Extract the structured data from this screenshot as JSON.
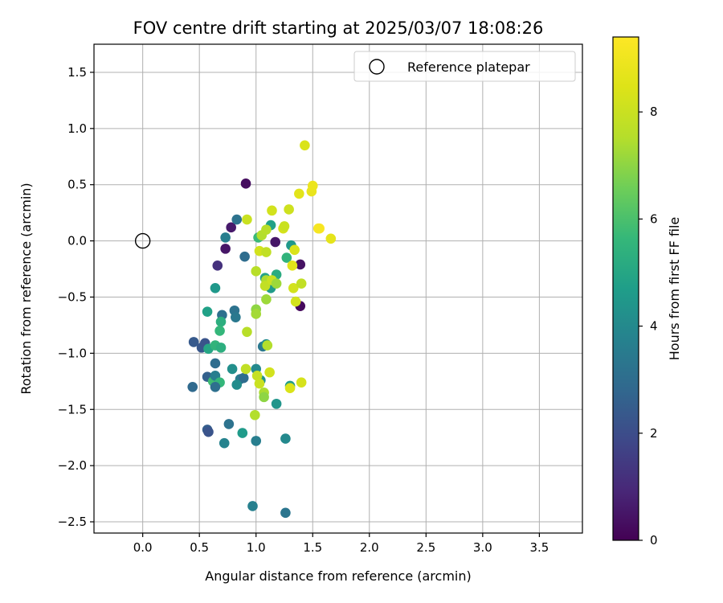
{
  "chart_data": {
    "type": "scatter",
    "title": "FOV centre drift starting at 2025/03/07 18:08:26",
    "xlabel": "Angular distance from reference (arcmin)",
    "ylabel": "Rotation from reference (arcmin)",
    "xlim": [
      -0.43,
      3.88
    ],
    "ylim": [
      -2.6,
      1.75
    ],
    "x_ticks": [
      "0.0",
      "0.5",
      "1.0",
      "1.5",
      "2.0",
      "2.5",
      "3.0",
      "3.5"
    ],
    "y_ticks": [
      "1.5",
      "1.0",
      "0.5",
      "0.0",
      "−0.5",
      "−1.0",
      "−1.5",
      "−2.0",
      "−2.5"
    ],
    "grid": true,
    "legend": {
      "placement": "top-right",
      "entries": [
        "Reference platepar"
      ]
    },
    "colorbar": {
      "label": "Hours from first FF file",
      "range": [
        0,
        9.4
      ],
      "ticks": [
        "0",
        "2",
        "4",
        "6",
        "8"
      ],
      "colormap": "viridis"
    },
    "reference_point": {
      "x": 0.0,
      "y": 0.0,
      "marker": "open-circle"
    },
    "points": [
      {
        "x": 0.91,
        "y": 0.51,
        "c": 0.3
      },
      {
        "x": 0.78,
        "y": 0.12,
        "c": 0.6
      },
      {
        "x": 0.73,
        "y": -0.07,
        "c": 0.5
      },
      {
        "x": 0.66,
        "y": -0.22,
        "c": 1.2
      },
      {
        "x": 1.17,
        "y": -0.01,
        "c": 0.5
      },
      {
        "x": 1.39,
        "y": -0.21,
        "c": 0.4
      },
      {
        "x": 1.39,
        "y": -0.58,
        "c": 0.2
      },
      {
        "x": 0.83,
        "y": 0.19,
        "c": 3.2
      },
      {
        "x": 0.73,
        "y": 0.03,
        "c": 3.6
      },
      {
        "x": 0.9,
        "y": -0.14,
        "c": 3.0
      },
      {
        "x": 0.64,
        "y": -0.42,
        "c": 4.5
      },
      {
        "x": 0.57,
        "y": -0.63,
        "c": 4.8
      },
      {
        "x": 0.7,
        "y": -0.66,
        "c": 3.1
      },
      {
        "x": 0.81,
        "y": -0.62,
        "c": 3.2
      },
      {
        "x": 0.82,
        "y": -0.68,
        "c": 3.4
      },
      {
        "x": 0.69,
        "y": -0.72,
        "c": 5.3
      },
      {
        "x": 0.68,
        "y": -0.8,
        "c": 5.6
      },
      {
        "x": 0.45,
        "y": -0.9,
        "c": 2.4
      },
      {
        "x": 0.52,
        "y": -0.95,
        "c": 2.3
      },
      {
        "x": 0.55,
        "y": -0.91,
        "c": 2.2
      },
      {
        "x": 0.58,
        "y": -0.96,
        "c": 5.0
      },
      {
        "x": 0.64,
        "y": -0.93,
        "c": 5.5
      },
      {
        "x": 0.69,
        "y": -0.95,
        "c": 5.3
      },
      {
        "x": 0.64,
        "y": -1.09,
        "c": 3.0
      },
      {
        "x": 0.57,
        "y": -1.21,
        "c": 2.6
      },
      {
        "x": 0.62,
        "y": -1.25,
        "c": 5.8
      },
      {
        "x": 0.64,
        "y": -1.2,
        "c": 3.6
      },
      {
        "x": 0.68,
        "y": -1.26,
        "c": 5.6
      },
      {
        "x": 0.64,
        "y": -1.3,
        "c": 3.1
      },
      {
        "x": 0.44,
        "y": -1.3,
        "c": 2.9
      },
      {
        "x": 0.79,
        "y": -1.14,
        "c": 4.2
      },
      {
        "x": 0.86,
        "y": -1.23,
        "c": 3.5
      },
      {
        "x": 0.89,
        "y": -1.22,
        "c": 3.0
      },
      {
        "x": 0.83,
        "y": -1.28,
        "c": 4.1
      },
      {
        "x": 0.57,
        "y": -1.68,
        "c": 2.5
      },
      {
        "x": 0.58,
        "y": -1.7,
        "c": 2.2
      },
      {
        "x": 0.76,
        "y": -1.63,
        "c": 3.2
      },
      {
        "x": 0.88,
        "y": -1.71,
        "c": 4.6
      },
      {
        "x": 0.72,
        "y": -1.8,
        "c": 3.8
      },
      {
        "x": 1.0,
        "y": -1.78,
        "c": 3.6
      },
      {
        "x": 1.26,
        "y": -1.76,
        "c": 4.0
      },
      {
        "x": 0.97,
        "y": -2.36,
        "c": 3.7
      },
      {
        "x": 1.26,
        "y": -2.42,
        "c": 3.3
      },
      {
        "x": 1.02,
        "y": 0.03,
        "c": 5.7
      },
      {
        "x": 1.13,
        "y": 0.14,
        "c": 4.8
      },
      {
        "x": 1.31,
        "y": -0.04,
        "c": 4.5
      },
      {
        "x": 1.27,
        "y": -0.15,
        "c": 5.5
      },
      {
        "x": 1.13,
        "y": -0.42,
        "c": 4.6
      },
      {
        "x": 1.08,
        "y": -0.33,
        "c": 4.9
      },
      {
        "x": 1.18,
        "y": -0.3,
        "c": 5.2
      },
      {
        "x": 1.06,
        "y": -0.94,
        "c": 3.4
      },
      {
        "x": 1.09,
        "y": -0.92,
        "c": 4.1
      },
      {
        "x": 1.0,
        "y": -1.14,
        "c": 4.0
      },
      {
        "x": 1.04,
        "y": -1.24,
        "c": 4.3
      },
      {
        "x": 1.18,
        "y": -1.45,
        "c": 4.4
      },
      {
        "x": 1.3,
        "y": -1.29,
        "c": 4.6
      },
      {
        "x": 0.92,
        "y": 0.19,
        "c": 8.0
      },
      {
        "x": 1.05,
        "y": 0.05,
        "c": 7.5
      },
      {
        "x": 1.09,
        "y": 0.1,
        "c": 7.6
      },
      {
        "x": 1.14,
        "y": 0.27,
        "c": 8.2
      },
      {
        "x": 1.24,
        "y": 0.11,
        "c": 8.3
      },
      {
        "x": 1.25,
        "y": 0.13,
        "c": 8.0
      },
      {
        "x": 1.29,
        "y": 0.28,
        "c": 8.1
      },
      {
        "x": 1.03,
        "y": -0.09,
        "c": 8.2
      },
      {
        "x": 1.09,
        "y": -0.1,
        "c": 7.8
      },
      {
        "x": 1.34,
        "y": -0.08,
        "c": 8.4
      },
      {
        "x": 1.0,
        "y": -0.27,
        "c": 7.6
      },
      {
        "x": 1.09,
        "y": -0.35,
        "c": 7.4
      },
      {
        "x": 1.08,
        "y": -0.4,
        "c": 7.8
      },
      {
        "x": 1.14,
        "y": -0.35,
        "c": 8.0
      },
      {
        "x": 1.18,
        "y": -0.38,
        "c": 7.2
      },
      {
        "x": 1.32,
        "y": -0.22,
        "c": 8.6
      },
      {
        "x": 1.33,
        "y": -0.42,
        "c": 8.2
      },
      {
        "x": 1.4,
        "y": -0.38,
        "c": 7.8
      },
      {
        "x": 1.35,
        "y": -0.54,
        "c": 8.2
      },
      {
        "x": 1.09,
        "y": -0.52,
        "c": 7.2
      },
      {
        "x": 1.0,
        "y": -0.61,
        "c": 7.0
      },
      {
        "x": 1.0,
        "y": -0.65,
        "c": 7.3
      },
      {
        "x": 0.92,
        "y": -0.81,
        "c": 7.6
      },
      {
        "x": 1.1,
        "y": -0.93,
        "c": 7.5
      },
      {
        "x": 0.91,
        "y": -1.14,
        "c": 7.8
      },
      {
        "x": 1.01,
        "y": -1.2,
        "c": 7.9
      },
      {
        "x": 1.03,
        "y": -1.27,
        "c": 8.0
      },
      {
        "x": 1.07,
        "y": -1.35,
        "c": 7.4
      },
      {
        "x": 1.07,
        "y": -1.39,
        "c": 7.0
      },
      {
        "x": 1.12,
        "y": -1.17,
        "c": 8.2
      },
      {
        "x": 0.99,
        "y": -1.55,
        "c": 7.5
      },
      {
        "x": 1.3,
        "y": -1.31,
        "c": 8.4
      },
      {
        "x": 1.4,
        "y": -1.26,
        "c": 8.3
      },
      {
        "x": 1.43,
        "y": 0.85,
        "c": 8.4
      },
      {
        "x": 1.38,
        "y": 0.42,
        "c": 8.6
      },
      {
        "x": 1.49,
        "y": 0.44,
        "c": 8.8
      },
      {
        "x": 1.5,
        "y": 0.49,
        "c": 8.9
      },
      {
        "x": 1.56,
        "y": 0.11,
        "c": 9.4
      },
      {
        "x": 1.55,
        "y": 0.11,
        "c": 9.2
      },
      {
        "x": 1.66,
        "y": 0.02,
        "c": 8.7
      }
    ]
  }
}
